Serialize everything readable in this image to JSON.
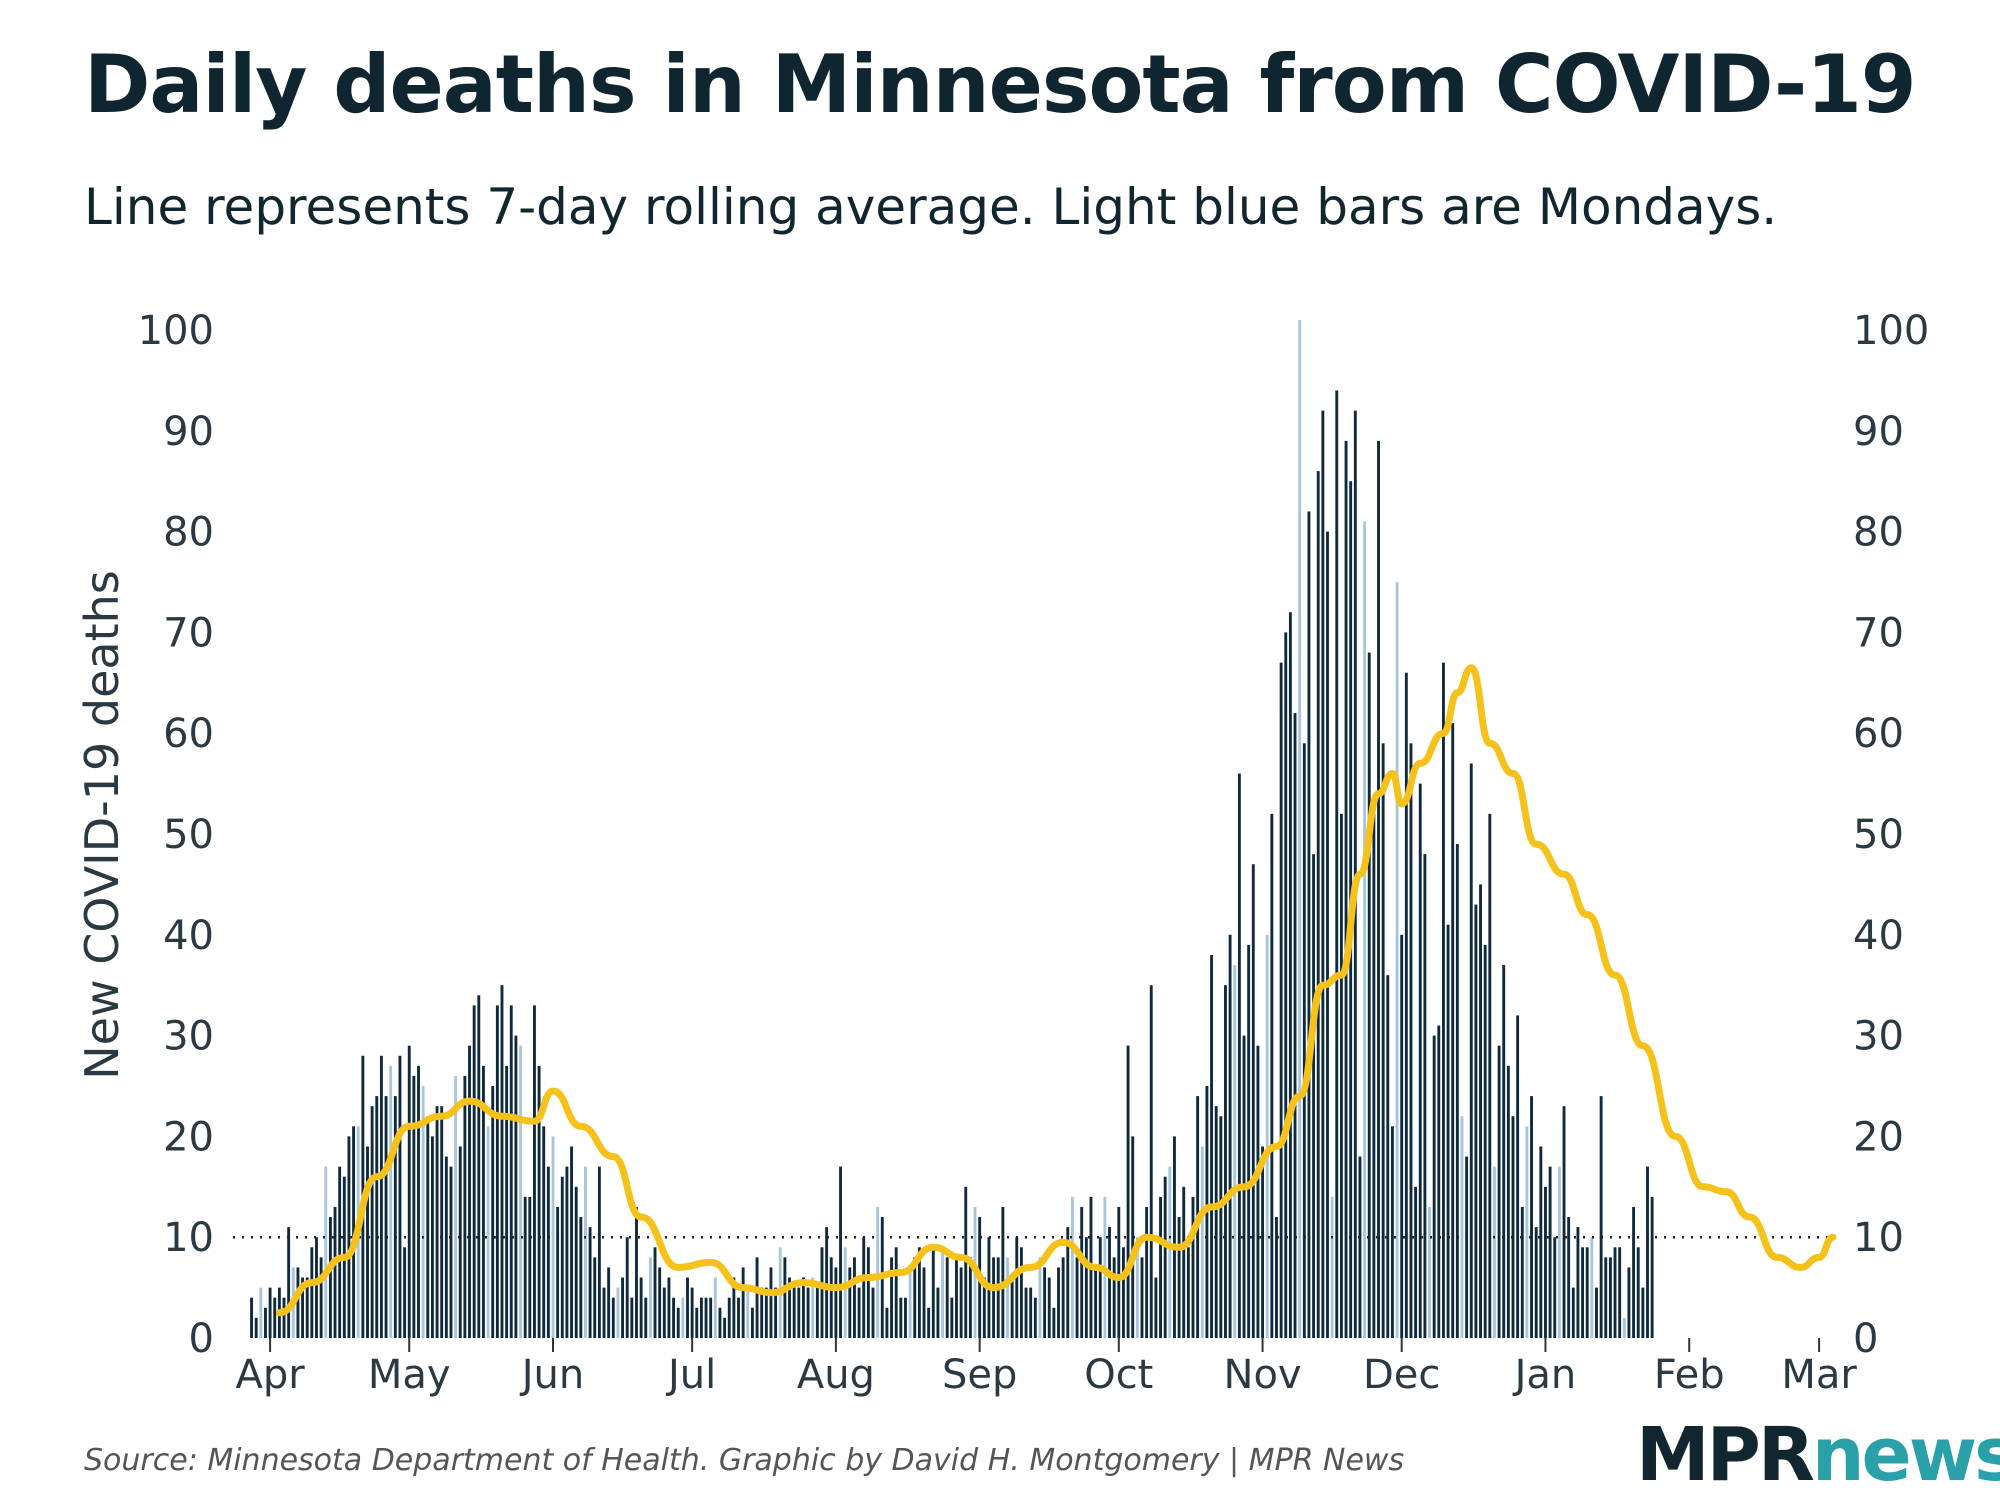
{
  "title": "Daily deaths in Minnesota from COVID-19",
  "subtitle": "Line represents 7-day rolling average. Light blue bars are Mondays.",
  "source": "Source: Minnesota Department of Health. Graphic by David H. Montgomery | MPR News",
  "logo": {
    "mpr": "MPR",
    "news": "news"
  },
  "colors": {
    "bar": "#0f2a3d",
    "monday_bar": "#a9c6dc",
    "line": "#f5c21b",
    "reference": "#222222"
  },
  "chart_data": {
    "type": "bar",
    "title": "Daily deaths in Minnesota from COVID-19",
    "subtitle": "Line represents 7-day rolling average. Light blue bars are Mondays.",
    "ylabel": "New COVID-19 deaths",
    "xlabel": "",
    "ylim": [
      0,
      100
    ],
    "yticks": [
      0,
      10,
      20,
      30,
      40,
      50,
      60,
      70,
      80,
      90,
      100
    ],
    "y_axis_right": true,
    "x_range": [
      "2020-03-24",
      "2021-03-04"
    ],
    "xticks": [
      {
        "label": "Apr",
        "date": "2020-04-01"
      },
      {
        "label": "May",
        "date": "2020-05-01"
      },
      {
        "label": "Jun",
        "date": "2020-06-01"
      },
      {
        "label": "Jul",
        "date": "2020-07-01"
      },
      {
        "label": "Aug",
        "date": "2020-08-01"
      },
      {
        "label": "Sep",
        "date": "2020-09-01"
      },
      {
        "label": "Oct",
        "date": "2020-10-01"
      },
      {
        "label": "Nov",
        "date": "2020-11-01"
      },
      {
        "label": "Dec",
        "date": "2020-12-01"
      },
      {
        "label": "Jan",
        "date": "2021-01-01"
      },
      {
        "label": "Feb",
        "date": "2021-02-01"
      },
      {
        "label": "Mar",
        "date": "2021-03-01"
      }
    ],
    "reference_line": 10,
    "grid": false,
    "start_date": "2020-03-28",
    "daily_deaths": [
      4,
      2,
      5,
      3,
      5,
      4,
      5,
      4,
      11,
      7,
      7,
      6,
      6,
      9,
      10,
      8,
      17,
      12,
      13,
      17,
      16,
      20,
      21,
      21,
      28,
      19,
      23,
      24,
      28,
      24,
      27,
      24,
      28,
      9,
      29,
      26,
      27,
      25,
      22,
      20,
      23,
      23,
      18,
      17,
      26,
      19,
      26,
      29,
      33,
      34,
      27,
      21,
      25,
      33,
      35,
      27,
      33,
      30,
      29,
      14,
      14,
      33,
      27,
      21,
      17,
      20,
      13,
      16,
      17,
      19,
      15,
      12,
      17,
      11,
      8,
      17,
      5,
      7,
      4,
      5,
      6,
      10,
      4,
      13,
      6,
      4,
      8,
      9,
      7,
      5,
      6,
      4,
      3,
      4,
      6,
      5,
      3,
      4,
      4,
      4,
      6,
      3,
      2,
      4,
      6,
      4,
      7,
      5,
      3,
      8,
      5,
      5,
      7,
      5,
      9,
      8,
      6,
      5,
      5,
      6,
      5,
      6,
      5,
      9,
      11,
      8,
      7,
      17,
      9,
      7,
      8,
      5,
      10,
      9,
      5,
      13,
      12,
      3,
      8,
      9,
      4,
      4,
      7,
      8,
      9,
      7,
      3,
      9,
      5,
      9,
      8,
      4,
      8,
      7,
      15,
      8,
      13,
      12,
      6,
      10,
      8,
      8,
      13,
      8,
      6,
      10,
      9,
      5,
      5,
      4,
      8,
      7,
      6,
      3,
      7,
      8,
      11,
      14,
      8,
      13,
      10,
      14,
      7,
      10,
      14,
      11,
      8,
      13,
      9,
      29,
      20,
      10,
      8,
      13,
      35,
      6,
      14,
      16,
      17,
      20,
      12,
      15,
      9,
      14,
      24,
      19,
      25,
      38,
      23,
      22,
      35,
      40,
      37,
      56,
      30,
      39,
      47,
      29,
      19,
      40,
      52,
      12,
      67,
      70,
      72,
      62,
      101,
      59,
      82,
      48,
      86,
      92,
      80,
      14,
      94,
      52,
      89,
      85,
      92,
      18,
      81,
      68,
      52,
      89,
      59,
      36,
      21,
      75,
      40,
      66,
      59,
      15,
      55,
      48,
      13,
      30,
      31,
      67,
      41,
      61,
      49,
      22,
      18,
      57,
      43,
      45,
      39,
      52,
      17,
      29,
      37,
      27,
      22,
      32,
      13,
      21,
      24,
      11,
      19,
      15,
      17,
      10,
      17,
      23,
      12,
      5,
      11,
      9,
      9,
      10,
      5,
      24,
      8,
      8,
      9,
      9,
      2,
      7,
      13,
      9,
      5,
      17,
      14
    ],
    "mondays": [
      "2020-03-30",
      "2020-04-06",
      "2020-04-13",
      "2020-04-20",
      "2020-04-27",
      "2020-05-04",
      "2020-05-11",
      "2020-05-18",
      "2020-05-25",
      "2020-06-01",
      "2020-06-08",
      "2020-06-15",
      "2020-06-22",
      "2020-06-29",
      "2020-07-06",
      "2020-07-13",
      "2020-07-20",
      "2020-07-27",
      "2020-08-03",
      "2020-08-10",
      "2020-08-17",
      "2020-08-24",
      "2020-08-31",
      "2020-09-07",
      "2020-09-14",
      "2020-09-21",
      "2020-09-28",
      "2020-10-05",
      "2020-10-12",
      "2020-10-19",
      "2020-10-26",
      "2020-11-02",
      "2020-11-09",
      "2020-11-16",
      "2020-11-23",
      "2020-11-30",
      "2020-12-07",
      "2020-12-14",
      "2020-12-21",
      "2020-12-28",
      "2021-01-04",
      "2021-01-11",
      "2021-01-18",
      "2021-01-25",
      "2021-02-01",
      "2021-02-08",
      "2021-02-15",
      "2021-02-22",
      "2021-03-01"
    ],
    "rolling_average_7day": [
      {
        "x": "2020-04-03",
        "y": 2.5
      },
      {
        "x": "2020-04-10",
        "y": 5.5
      },
      {
        "x": "2020-04-17",
        "y": 8
      },
      {
        "x": "2020-04-24",
        "y": 16
      },
      {
        "x": "2020-05-01",
        "y": 21
      },
      {
        "x": "2020-05-08",
        "y": 22
      },
      {
        "x": "2020-05-14",
        "y": 23.5
      },
      {
        "x": "2020-05-21",
        "y": 22
      },
      {
        "x": "2020-05-28",
        "y": 21.5
      },
      {
        "x": "2020-06-01",
        "y": 24.5
      },
      {
        "x": "2020-06-07",
        "y": 21
      },
      {
        "x": "2020-06-14",
        "y": 18
      },
      {
        "x": "2020-06-20",
        "y": 12
      },
      {
        "x": "2020-06-28",
        "y": 7
      },
      {
        "x": "2020-07-05",
        "y": 7.5
      },
      {
        "x": "2020-07-12",
        "y": 5
      },
      {
        "x": "2020-07-18",
        "y": 4.5
      },
      {
        "x": "2020-07-25",
        "y": 5.5
      },
      {
        "x": "2020-08-01",
        "y": 5
      },
      {
        "x": "2020-08-08",
        "y": 6
      },
      {
        "x": "2020-08-15",
        "y": 6.5
      },
      {
        "x": "2020-08-22",
        "y": 9
      },
      {
        "x": "2020-08-28",
        "y": 8
      },
      {
        "x": "2020-09-04",
        "y": 5
      },
      {
        "x": "2020-09-12",
        "y": 7
      },
      {
        "x": "2020-09-19",
        "y": 9.5
      },
      {
        "x": "2020-09-26",
        "y": 7
      },
      {
        "x": "2020-10-01",
        "y": 6
      },
      {
        "x": "2020-10-07",
        "y": 10
      },
      {
        "x": "2020-10-14",
        "y": 9
      },
      {
        "x": "2020-10-21",
        "y": 13
      },
      {
        "x": "2020-10-28",
        "y": 15
      },
      {
        "x": "2020-11-04",
        "y": 19
      },
      {
        "x": "2020-11-09",
        "y": 24
      },
      {
        "x": "2020-11-14",
        "y": 35
      },
      {
        "x": "2020-11-18",
        "y": 36
      },
      {
        "x": "2020-11-22",
        "y": 46
      },
      {
        "x": "2020-11-26",
        "y": 54
      },
      {
        "x": "2020-11-29",
        "y": 56
      },
      {
        "x": "2020-12-01",
        "y": 53
      },
      {
        "x": "2020-12-05",
        "y": 57
      },
      {
        "x": "2020-12-10",
        "y": 60
      },
      {
        "x": "2020-12-13",
        "y": 64
      },
      {
        "x": "2020-12-16",
        "y": 66.5
      },
      {
        "x": "2020-12-20",
        "y": 59
      },
      {
        "x": "2020-12-25",
        "y": 56
      },
      {
        "x": "2020-12-30",
        "y": 49
      },
      {
        "x": "2021-01-05",
        "y": 46
      },
      {
        "x": "2021-01-10",
        "y": 42
      },
      {
        "x": "2021-01-16",
        "y": 36
      },
      {
        "x": "2021-01-22",
        "y": 29
      },
      {
        "x": "2021-01-29",
        "y": 20
      },
      {
        "x": "2021-02-04",
        "y": 15
      },
      {
        "x": "2021-02-09",
        "y": 14.5
      },
      {
        "x": "2021-02-14",
        "y": 12
      },
      {
        "x": "2021-02-20",
        "y": 8
      },
      {
        "x": "2021-02-25",
        "y": 7
      },
      {
        "x": "2021-03-01",
        "y": 8
      },
      {
        "x": "2021-03-04",
        "y": 10
      }
    ]
  }
}
